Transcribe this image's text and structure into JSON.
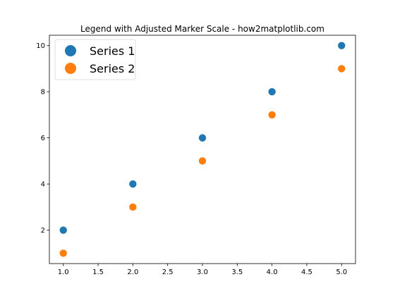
{
  "chart_data": {
    "type": "scatter",
    "title": "Legend with Adjusted Marker Scale - how2matplotlib.com",
    "xlabel": "",
    "ylabel": "",
    "xlim": [
      0.8,
      5.2
    ],
    "ylim": [
      0.55,
      10.45
    ],
    "xticks": [
      1.0,
      1.5,
      2.0,
      2.5,
      3.0,
      3.5,
      4.0,
      4.5,
      5.0
    ],
    "xtick_labels": [
      "1.0",
      "1.5",
      "2.0",
      "2.5",
      "3.0",
      "3.5",
      "4.0",
      "4.5",
      "5.0"
    ],
    "yticks": [
      2,
      4,
      6,
      8,
      10
    ],
    "ytick_labels": [
      "2",
      "4",
      "6",
      "8",
      "10"
    ],
    "grid": false,
    "legend_position": "upper-left",
    "series": [
      {
        "name": "Series 1",
        "color": "#1f77b4",
        "x": [
          1,
          2,
          3,
          4,
          5
        ],
        "y": [
          2,
          4,
          6,
          8,
          10
        ]
      },
      {
        "name": "Series 2",
        "color": "#ff7f0e",
        "x": [
          1,
          2,
          3,
          4,
          5
        ],
        "y": [
          1,
          3,
          5,
          7,
          9
        ]
      }
    ]
  }
}
